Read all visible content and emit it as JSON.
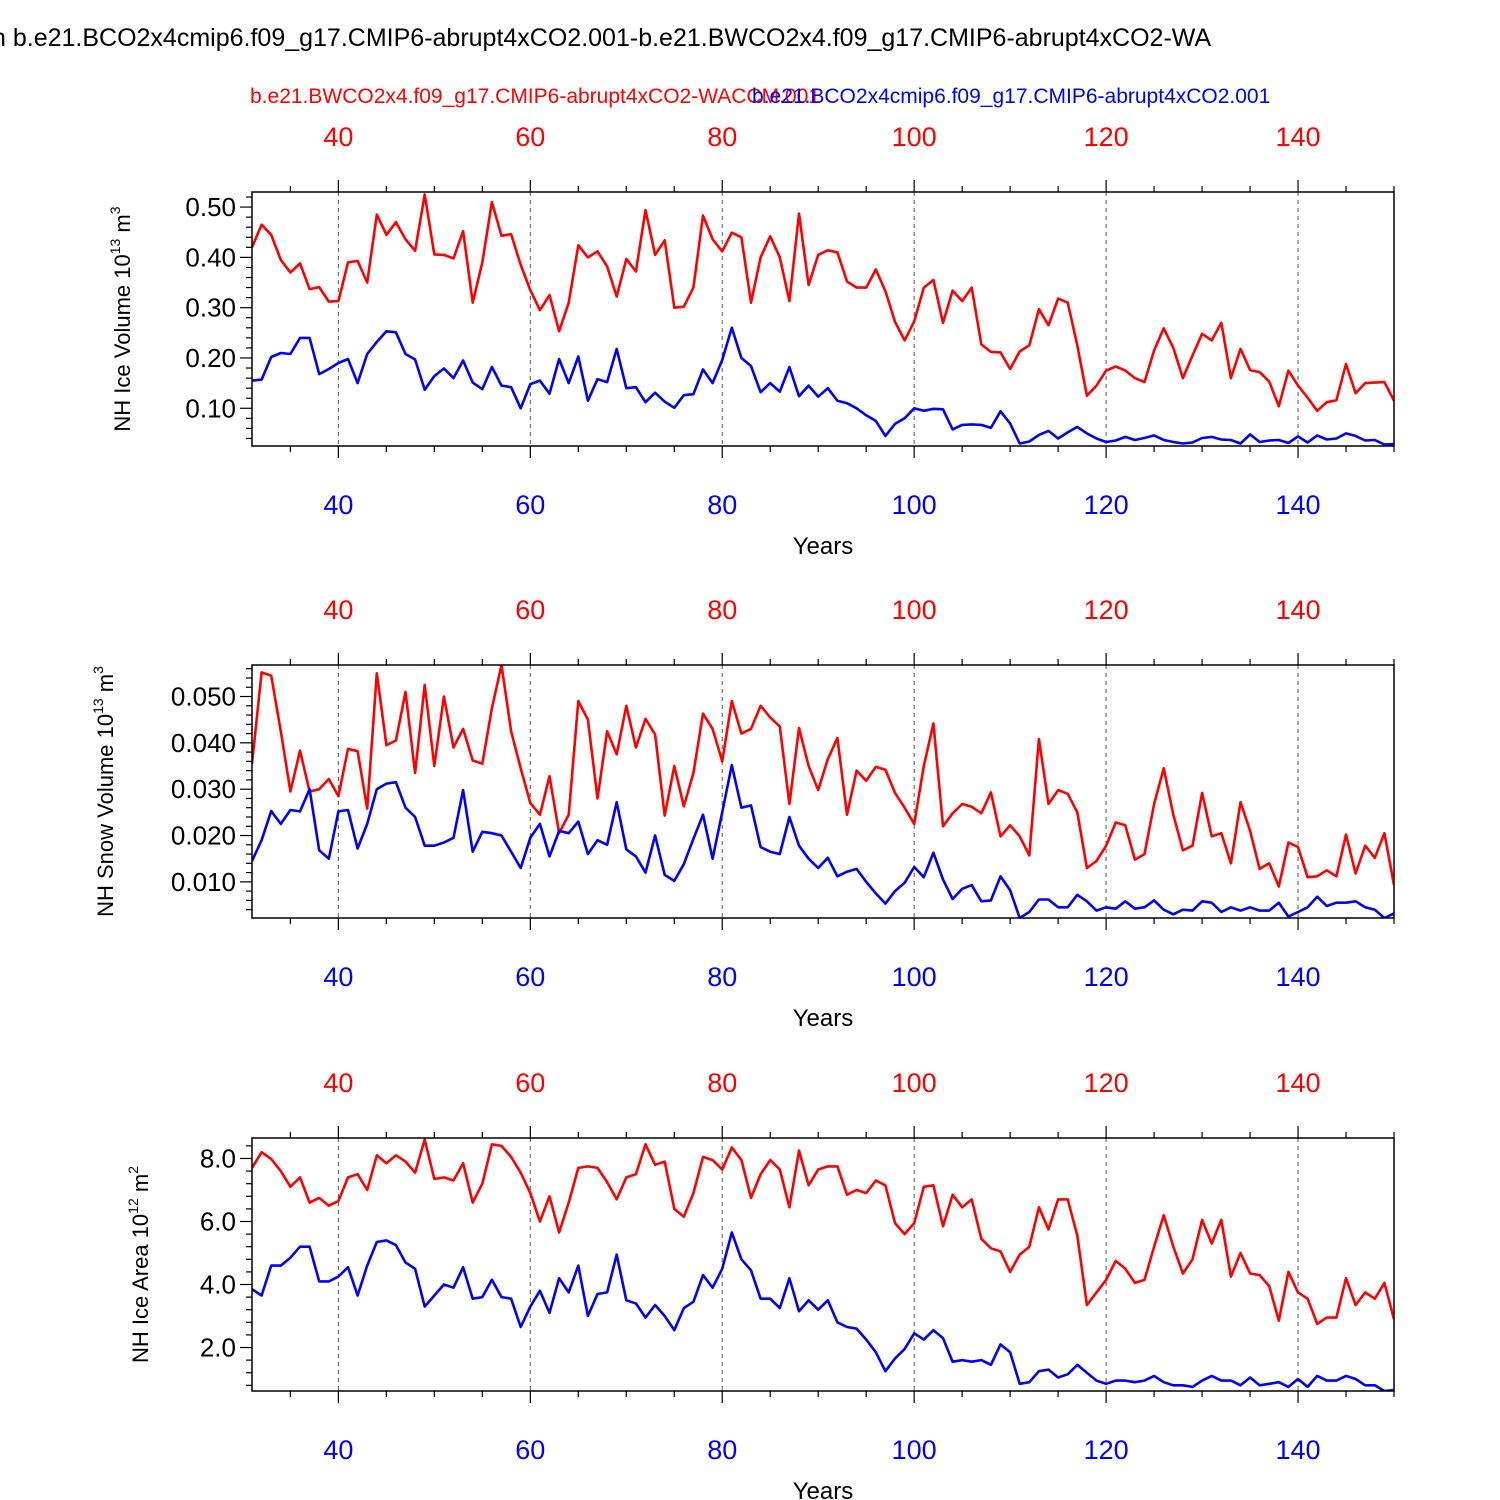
{
  "figure": {
    "title": "n b.e21.BCO2x4cmip6.f09_g17.CMIP6-abrupt4xCO2.001-b.e21.BWCO2x4.f09_g17.CMIP6-abrupt4xCO2-WA",
    "legend_red": "b.e21.BWCO2x4.f09_g17.CMIP6-abrupt4xCO2-WACCM.001",
    "legend_blue": "b.e21.BCO2x4cmip6.f09_g17.CMIP6-abrupt4xCO2.001",
    "red_color": "#ff0000",
    "blue_color": "#0000ff"
  },
  "chart_data": [
    {
      "type": "line",
      "ylabel": "NH Ice Volume 10",
      "ylabel_exp": "13",
      "ylabel_unit": " m",
      "ylabel_unit_exp": "3",
      "xlabel": "Years",
      "xlim": [
        31,
        150
      ],
      "ylim": [
        0.025,
        0.53
      ],
      "x_ticks": [
        40,
        60,
        80,
        100,
        120,
        140
      ],
      "y_ticks": [
        0.1,
        0.2,
        0.3,
        0.4,
        0.5
      ],
      "y_tick_labels": [
        "0.10",
        "0.20",
        "0.30",
        "0.40",
        "0.50"
      ],
      "grid": "vertical dashed",
      "start_year": 31,
      "series": [
        {
          "name": "b.e21.BWCO2x4.f09_g17.CMIP6-abrupt4xCO2-WACCM.001",
          "color": "#ff0000",
          "values": [
            0.42,
            0.465,
            0.445,
            0.395,
            0.37,
            0.388,
            0.337,
            0.341,
            0.312,
            0.313,
            0.39,
            0.393,
            0.35,
            0.485,
            0.445,
            0.47,
            0.436,
            0.413,
            0.525,
            0.406,
            0.405,
            0.398,
            0.452,
            0.31,
            0.39,
            0.51,
            0.443,
            0.446,
            0.385,
            0.335,
            0.295,
            0.325,
            0.253,
            0.31,
            0.424,
            0.4,
            0.412,
            0.382,
            0.322,
            0.397,
            0.372,
            0.494,
            0.405,
            0.434,
            0.3,
            0.302,
            0.34,
            0.483,
            0.436,
            0.412,
            0.449,
            0.44,
            0.31,
            0.4,
            0.442,
            0.4,
            0.313,
            0.487,
            0.345,
            0.405,
            0.414,
            0.41,
            0.352,
            0.34,
            0.34,
            0.376,
            0.333,
            0.272,
            0.235,
            0.273,
            0.34,
            0.355,
            0.27,
            0.334,
            0.313,
            0.34,
            0.227,
            0.212,
            0.211,
            0.178,
            0.213,
            0.225,
            0.297,
            0.265,
            0.318,
            0.31,
            0.225,
            0.125,
            0.145,
            0.175,
            0.183,
            0.175,
            0.16,
            0.152,
            0.215,
            0.259,
            0.22,
            0.16,
            0.205,
            0.248,
            0.235,
            0.27,
            0.16,
            0.218,
            0.176,
            0.172,
            0.153,
            0.104,
            0.175,
            0.145,
            0.121,
            0.095,
            0.112,
            0.116,
            0.188,
            0.13,
            0.15,
            0.151,
            0.152,
            0.115
          ]
        },
        {
          "name": "b.e21.BCO2x4cmip6.f09_g17.CMIP6-abrupt4xCO2.001",
          "color": "#0000ff",
          "values": [
            0.155,
            0.157,
            0.202,
            0.21,
            0.208,
            0.24,
            0.24,
            0.168,
            0.178,
            0.19,
            0.198,
            0.15,
            0.208,
            0.232,
            0.253,
            0.251,
            0.208,
            0.197,
            0.137,
            0.164,
            0.179,
            0.16,
            0.195,
            0.151,
            0.138,
            0.182,
            0.145,
            0.142,
            0.1,
            0.148,
            0.155,
            0.129,
            0.198,
            0.15,
            0.203,
            0.115,
            0.158,
            0.152,
            0.218,
            0.14,
            0.142,
            0.112,
            0.131,
            0.113,
            0.101,
            0.126,
            0.128,
            0.177,
            0.15,
            0.196,
            0.26,
            0.2,
            0.184,
            0.132,
            0.15,
            0.133,
            0.182,
            0.124,
            0.145,
            0.123,
            0.14,
            0.115,
            0.11,
            0.1,
            0.086,
            0.075,
            0.045,
            0.069,
            0.08,
            0.1,
            0.095,
            0.099,
            0.098,
            0.058,
            0.067,
            0.068,
            0.067,
            0.061,
            0.094,
            0.07,
            0.03,
            0.034,
            0.047,
            0.055,
            0.04,
            0.052,
            0.063,
            0.05,
            0.04,
            0.033,
            0.036,
            0.043,
            0.037,
            0.041,
            0.046,
            0.037,
            0.033,
            0.03,
            0.032,
            0.041,
            0.043,
            0.038,
            0.037,
            0.03,
            0.048,
            0.033,
            0.036,
            0.037,
            0.031,
            0.044,
            0.032,
            0.046,
            0.038,
            0.04,
            0.05,
            0.045,
            0.036,
            0.037,
            0.028,
            0.029
          ]
        }
      ]
    },
    {
      "type": "line",
      "ylabel": "NH Snow Volume 10",
      "ylabel_exp": "13",
      "ylabel_unit": " m",
      "ylabel_unit_exp": "3",
      "xlabel": "Years",
      "xlim": [
        31,
        150
      ],
      "ylim": [
        0.0022,
        0.0568
      ],
      "x_ticks": [
        40,
        60,
        80,
        100,
        120,
        140
      ],
      "y_ticks": [
        0.01,
        0.02,
        0.03,
        0.04,
        0.05
      ],
      "y_tick_labels": [
        "0.010",
        "0.020",
        "0.030",
        "0.040",
        "0.050"
      ],
      "grid": "vertical dashed",
      "start_year": 31,
      "series": [
        {
          "name": "b.e21.BWCO2x4.f09_g17.CMIP6-abrupt4xCO2-WACCM.001",
          "color": "#ff0000",
          "values": [
            0.0355,
            0.0552,
            0.0545,
            0.0425,
            0.0295,
            0.0383,
            0.0295,
            0.03,
            0.0322,
            0.0285,
            0.0387,
            0.0382,
            0.0258,
            0.055,
            0.0395,
            0.0405,
            0.051,
            0.0335,
            0.0525,
            0.035,
            0.05,
            0.039,
            0.043,
            0.0362,
            0.0355,
            0.0475,
            0.0568,
            0.0425,
            0.0345,
            0.027,
            0.0245,
            0.0328,
            0.0205,
            0.0245,
            0.049,
            0.045,
            0.028,
            0.0425,
            0.0375,
            0.048,
            0.039,
            0.0452,
            0.0418,
            0.0243,
            0.035,
            0.0263,
            0.0335,
            0.0463,
            0.043,
            0.036,
            0.049,
            0.042,
            0.043,
            0.048,
            0.0455,
            0.0435,
            0.0268,
            0.0432,
            0.035,
            0.0298,
            0.0365,
            0.041,
            0.0245,
            0.034,
            0.0318,
            0.0348,
            0.0342,
            0.0292,
            0.026,
            0.0225,
            0.035,
            0.0442,
            0.022,
            0.0248,
            0.0268,
            0.0262,
            0.0248,
            0.0293,
            0.0198,
            0.0222,
            0.0198,
            0.0157,
            0.0408,
            0.0268,
            0.0298,
            0.029,
            0.025,
            0.013,
            0.0145,
            0.0178,
            0.0228,
            0.0222,
            0.0148,
            0.016,
            0.0268,
            0.0345,
            0.0245,
            0.0168,
            0.0178,
            0.0292,
            0.0198,
            0.0205,
            0.014,
            0.0272,
            0.021,
            0.0128,
            0.014,
            0.009,
            0.0185,
            0.0175,
            0.011,
            0.0112,
            0.0125,
            0.0112,
            0.0202,
            0.0118,
            0.0178,
            0.0152,
            0.0205,
            0.0093
          ]
        },
        {
          "name": "b.e21.BCO2x4cmip6.f09_g17.CMIP6-abrupt4xCO2.001",
          "color": "#0000ff",
          "values": [
            0.0145,
            0.019,
            0.0253,
            0.0225,
            0.0255,
            0.0252,
            0.03,
            0.0168,
            0.015,
            0.0252,
            0.0255,
            0.0172,
            0.0225,
            0.03,
            0.0312,
            0.0315,
            0.026,
            0.024,
            0.0178,
            0.0178,
            0.0185,
            0.0195,
            0.0298,
            0.0165,
            0.0208,
            0.0205,
            0.02,
            0.0165,
            0.013,
            0.0195,
            0.0225,
            0.0155,
            0.021,
            0.0205,
            0.023,
            0.016,
            0.019,
            0.018,
            0.0272,
            0.017,
            0.0155,
            0.012,
            0.02,
            0.0115,
            0.0102,
            0.0138,
            0.0193,
            0.0245,
            0.015,
            0.025,
            0.0352,
            0.026,
            0.0265,
            0.0175,
            0.0165,
            0.016,
            0.024,
            0.0178,
            0.015,
            0.013,
            0.0152,
            0.0112,
            0.0122,
            0.0128,
            0.01,
            0.0075,
            0.0053,
            0.008,
            0.0098,
            0.0132,
            0.011,
            0.0163,
            0.0105,
            0.0063,
            0.0085,
            0.0093,
            0.0058,
            0.006,
            0.0112,
            0.0082,
            0.0022,
            0.0035,
            0.0062,
            0.0062,
            0.0045,
            0.0045,
            0.0072,
            0.0058,
            0.0038,
            0.0045,
            0.0042,
            0.0058,
            0.0042,
            0.0045,
            0.006,
            0.004,
            0.003,
            0.004,
            0.0038,
            0.0058,
            0.0055,
            0.0035,
            0.0045,
            0.0038,
            0.0045,
            0.0038,
            0.0038,
            0.0055,
            0.0025,
            0.0035,
            0.0045,
            0.0068,
            0.0048,
            0.0055,
            0.0055,
            0.0058,
            0.0045,
            0.004,
            0.0022,
            0.0032
          ]
        }
      ]
    },
    {
      "type": "line",
      "ylabel": "NH Ice Area 10",
      "ylabel_exp": "12",
      "ylabel_unit": " m",
      "ylabel_unit_exp": "2",
      "xlabel": "Years",
      "xlim": [
        31,
        150
      ],
      "ylim": [
        0.62,
        8.65
      ],
      "x_ticks": [
        40,
        60,
        80,
        100,
        120,
        140
      ],
      "y_ticks": [
        2.0,
        4.0,
        6.0,
        8.0
      ],
      "y_tick_labels": [
        "2.0",
        "4.0",
        "6.0",
        "8.0"
      ],
      "grid": "vertical dashed",
      "start_year": 31,
      "series": [
        {
          "name": "b.e21.BWCO2x4.f09_g17.CMIP6-abrupt4xCO2-WACCM.001",
          "color": "#ff0000",
          "values": [
            7.7,
            8.2,
            7.98,
            7.6,
            7.1,
            7.4,
            6.6,
            6.75,
            6.5,
            6.65,
            7.4,
            7.5,
            7.0,
            8.1,
            7.85,
            8.1,
            7.9,
            7.55,
            8.6,
            7.35,
            7.4,
            7.3,
            7.85,
            6.6,
            7.2,
            8.45,
            8.4,
            8.05,
            7.55,
            6.9,
            6.0,
            6.8,
            5.65,
            6.6,
            7.7,
            7.75,
            7.7,
            7.25,
            6.7,
            7.4,
            7.5,
            8.45,
            7.8,
            7.9,
            6.4,
            6.15,
            6.9,
            8.05,
            7.95,
            7.65,
            8.35,
            7.95,
            6.75,
            7.5,
            7.95,
            7.65,
            6.45,
            8.25,
            7.15,
            7.65,
            7.75,
            7.75,
            6.85,
            7.0,
            6.9,
            7.3,
            7.15,
            5.95,
            5.6,
            5.95,
            7.1,
            7.15,
            5.85,
            6.85,
            6.45,
            6.7,
            5.45,
            5.15,
            5.05,
            4.4,
            4.95,
            5.2,
            6.45,
            5.75,
            6.7,
            6.7,
            5.55,
            3.35,
            3.75,
            4.15,
            4.75,
            4.5,
            4.05,
            4.15,
            5.2,
            6.2,
            5.2,
            4.35,
            4.8,
            6.05,
            5.3,
            6.05,
            4.25,
            5.0,
            4.35,
            4.3,
            3.95,
            2.85,
            4.4,
            3.75,
            3.55,
            2.75,
            2.95,
            2.95,
            4.2,
            3.35,
            3.75,
            3.55,
            4.05,
            2.9
          ]
        },
        {
          "name": "b.e21.BCO2x4cmip6.f09_g17.CMIP6-abrupt4xCO2.001",
          "color": "#0000ff",
          "values": [
            3.85,
            3.65,
            4.6,
            4.6,
            4.85,
            5.2,
            5.2,
            4.1,
            4.1,
            4.25,
            4.55,
            3.65,
            4.6,
            5.35,
            5.4,
            5.25,
            4.7,
            4.5,
            3.3,
            3.65,
            4.0,
            3.9,
            4.55,
            3.55,
            3.6,
            4.15,
            3.6,
            3.55,
            2.65,
            3.3,
            3.8,
            3.1,
            4.2,
            3.75,
            4.6,
            3.0,
            3.7,
            3.75,
            4.95,
            3.5,
            3.4,
            2.95,
            3.35,
            3.0,
            2.55,
            3.25,
            3.45,
            4.3,
            3.9,
            4.5,
            5.65,
            4.8,
            4.45,
            3.55,
            3.55,
            3.25,
            4.2,
            3.15,
            3.5,
            3.2,
            3.5,
            2.8,
            2.65,
            2.6,
            2.25,
            1.85,
            1.25,
            1.65,
            1.95,
            2.45,
            2.25,
            2.55,
            2.3,
            1.55,
            1.6,
            1.55,
            1.6,
            1.45,
            2.1,
            1.85,
            0.85,
            0.9,
            1.25,
            1.3,
            1.05,
            1.15,
            1.45,
            1.2,
            0.95,
            0.85,
            0.95,
            0.95,
            0.9,
            0.95,
            1.1,
            0.9,
            0.8,
            0.8,
            0.75,
            0.95,
            1.1,
            0.95,
            0.95,
            0.8,
            1.05,
            0.8,
            0.85,
            0.9,
            0.75,
            1.0,
            0.75,
            1.1,
            0.95,
            0.95,
            1.1,
            1.0,
            0.8,
            0.8,
            0.62,
            0.65
          ]
        }
      ]
    }
  ]
}
